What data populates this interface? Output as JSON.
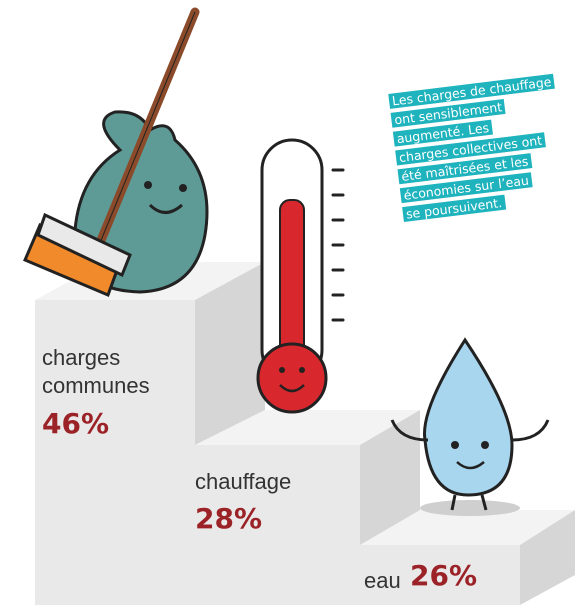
{
  "note": {
    "lines": [
      "Les charges de chauffage",
      "ont sensiblement",
      "augmenté. Les",
      "charges collectives ont",
      "été maîtrisées et les",
      "économies sur l’eau",
      "se poursuivent."
    ]
  },
  "items": [
    {
      "label": "charges communes",
      "value": "46%"
    },
    {
      "label": "chauffage",
      "value": "28%"
    },
    {
      "label": "eau",
      "value": "26%"
    }
  ]
}
